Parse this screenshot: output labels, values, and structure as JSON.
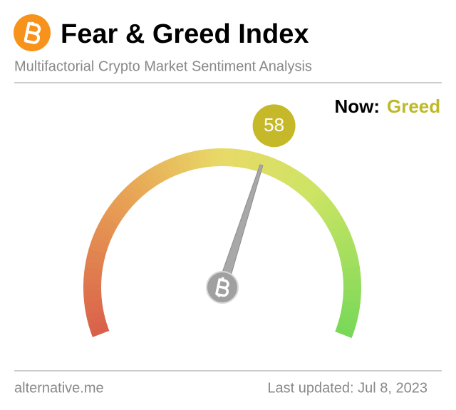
{
  "chart_data": {
    "type": "gauge",
    "title": "Fear & Greed Index",
    "subtitle": "Multifactorial Crypto Market Sentiment Analysis",
    "now_label": "Now:",
    "classification": "Greed",
    "value": 58,
    "ylim": [
      0,
      100
    ],
    "color": "#c5b92a",
    "source": "alternative.me",
    "updated": "Last updated: Jul 8, 2023"
  }
}
